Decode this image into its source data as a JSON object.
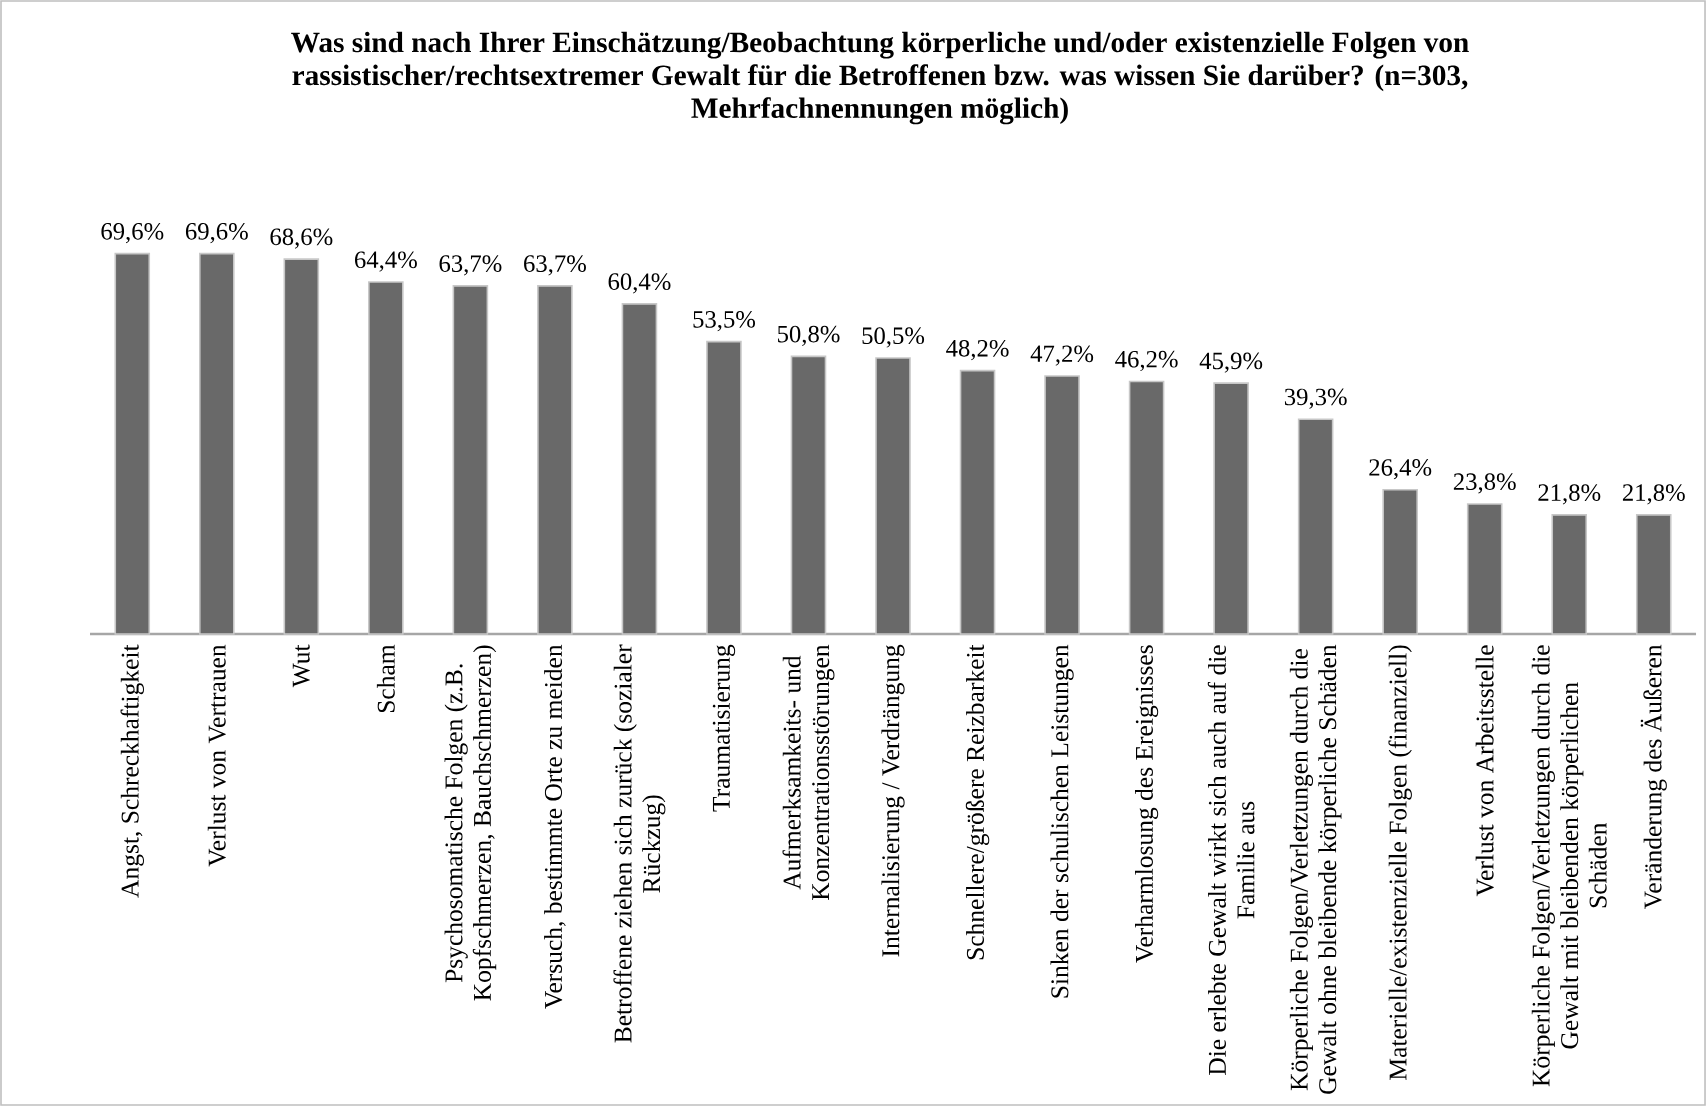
{
  "chart_data": {
    "type": "bar",
    "title": "Was sind nach Ihrer Einschätzung/Beobachtung körperliche und/oder existenzielle Folgen von rassistischer/rechtsextremer Gewalt für die Betroffenen bzw. was wissen Sie darüber? (n=303, Mehrfachnennungen möglich)",
    "categories": [
      "Angst, Schreckhaftigkeit",
      "Verlust von Vertrauen",
      "Wut",
      "Scham",
      "Psychosomatische Folgen (z.B. Kopfschmerzen, Bauchschmerzen)",
      "Versuch, bestimmte Orte zu meiden",
      "Betroffene ziehen sich zurück (sozialer Rückzug)",
      "Traumatisierung",
      "Aufmerksamkeits- und Konzentrationsstörungen",
      "Internalisierung / Verdrängung",
      "Schnellere/größere Reizbarkeit",
      "Sinken der schulischen Leistungen",
      "Verharmlosung des Ereignisses",
      "Die erlebte Gewalt wirkt sich auch auf die Familie aus",
      "Körperliche Folgen/Verletzungen durch die Gewalt ohne bleibende körperliche Schäden",
      "Materielle/existenzielle Folgen (finanziell)",
      "Verlust von Arbeitsstelle",
      "Körperliche Folgen/Verletzungen durch die Gewalt mit bleibenden körperlichen Schäden",
      "Veränderung des Äußeren"
    ],
    "values": [
      69.6,
      69.6,
      68.6,
      64.4,
      63.7,
      63.7,
      60.4,
      53.5,
      50.8,
      50.5,
      48.2,
      47.2,
      46.2,
      45.9,
      39.3,
      26.4,
      23.8,
      21.8,
      21.8
    ],
    "value_labels": [
      "69,6%",
      "69,6%",
      "68,6%",
      "64,4%",
      "63,7%",
      "63,7%",
      "60,4%",
      "53,5%",
      "50,8%",
      "50,5%",
      "48,2%",
      "47,2%",
      "46,2%",
      "45,9%",
      "39,3%",
      "26,4%",
      "23,8%",
      "21,8%",
      "21,8%"
    ],
    "color": "#696969",
    "tick_labels": "x"
  }
}
